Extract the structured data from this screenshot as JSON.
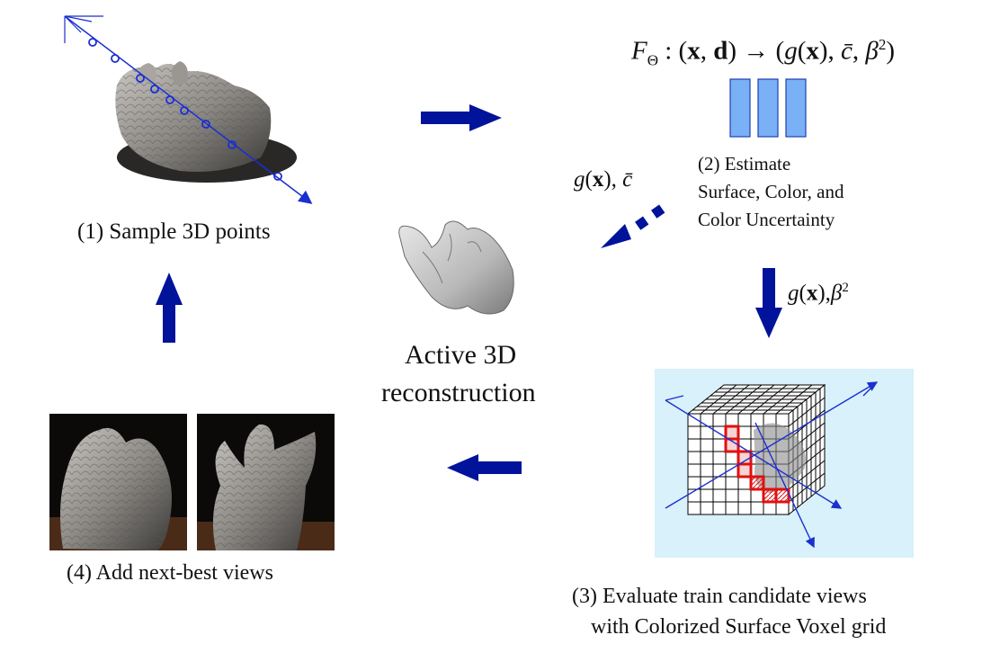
{
  "formula": {
    "F": "F",
    "theta": "Θ",
    "colon": " : (",
    "x": "x",
    "comma": ", ",
    "d": "d",
    "arrow": ") → (",
    "g": "g",
    "paren_open": "(",
    "x2": "x",
    "paren_close_comma": "), ",
    "cbar": "c̄",
    "comma2": ", ",
    "beta": "β",
    "sq": "2",
    "end": ")"
  },
  "steps": {
    "step1": "(1) Sample 3D points",
    "step2_line1": "(2) Estimate",
    "step2_line2": "Surface,  Color, and",
    "step2_line3": "Color Uncertainty",
    "step3_line1": "(3) Evaluate train candidate views",
    "step3_line2": "with Colorized Surface Voxel grid",
    "step4": "(4) Add next-best views"
  },
  "center": {
    "line1": "Active 3D",
    "line2": "reconstruction"
  },
  "labels": {
    "g_cbar_g": "g",
    "g_cbar_x": "x",
    "g_cbar_c": "c̄",
    "g_beta_g": "g",
    "g_beta_x": "x",
    "g_beta_b": "β",
    "g_beta_sq": "2"
  },
  "colors": {
    "arrow_blue": "#00139a",
    "network_block": "#7ab0f5",
    "network_border": "#1f3fb0",
    "voxel_bg": "#d8f1fb",
    "voxel_highlight": "#e01010",
    "ray_blue": "#1a2fd0"
  }
}
